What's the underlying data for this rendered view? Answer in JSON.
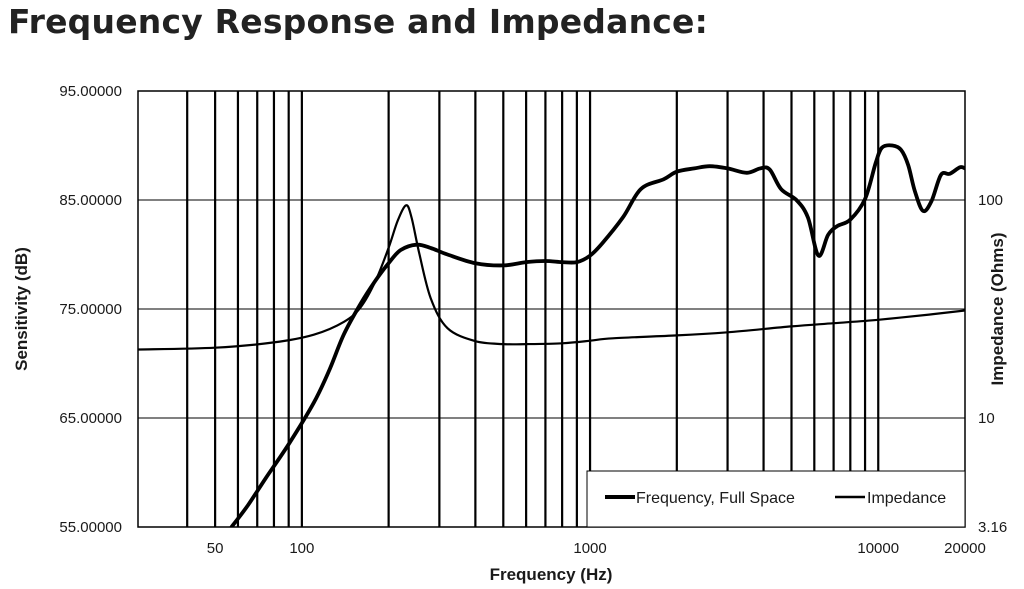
{
  "page": {
    "title": "Frequency Response and Impedance:"
  },
  "chart_data": {
    "type": "line",
    "xlabel": "Frequency (Hz)",
    "ylabel": "Sensitivity (dB)",
    "y2label": "Impedance (Ohms)",
    "x_scale": "log",
    "xlim": [
      27,
      20000
    ],
    "ylim": [
      55,
      95
    ],
    "y2_scale": "log",
    "y2lim": [
      3.16,
      316
    ],
    "x_ticks": [
      {
        "value": 50,
        "label": "50"
      },
      {
        "value": 100,
        "label": "100"
      },
      {
        "value": 1000,
        "label": "1000"
      },
      {
        "value": 10000,
        "label": "10000"
      },
      {
        "value": 20000,
        "label": "20000"
      }
    ],
    "y_ticks": [
      {
        "value": 95,
        "label": "95.00000"
      },
      {
        "value": 85,
        "label": "85.00000"
      },
      {
        "value": 75,
        "label": "75.00000"
      },
      {
        "value": 65,
        "label": "65.00000"
      },
      {
        "value": 55,
        "label": "55.00000"
      }
    ],
    "y2_ticks": [
      {
        "value": 100,
        "label": "100"
      },
      {
        "value": 10,
        "label": "10"
      },
      {
        "value": 3.16,
        "label": "3.16"
      }
    ],
    "x_gridlines": [
      40,
      50,
      60,
      70,
      80,
      90,
      100,
      200,
      300,
      400,
      500,
      600,
      700,
      800,
      900,
      1000,
      2000,
      3000,
      4000,
      5000,
      6000,
      7000,
      8000,
      9000,
      10000,
      20000
    ],
    "y_gridlines": [
      95,
      85,
      75,
      65,
      55
    ],
    "grid": true,
    "legend_position": "bottom-right",
    "series": [
      {
        "name": "Frequency, Full Space",
        "axis": "left",
        "color": "#000000",
        "x": [
          57,
          65,
          75,
          90,
          110,
          125,
          140,
          160,
          180,
          200,
          220,
          250,
          280,
          320,
          400,
          500,
          600,
          700,
          800,
          900,
          1000,
          1100,
          1300,
          1500,
          1800,
          2000,
          2300,
          2600,
          3000,
          3500,
          3900,
          4200,
          4600,
          5200,
          5700,
          6200,
          6700,
          7200,
          8000,
          9000,
          9800,
          10300,
          11200,
          12000,
          12700,
          13400,
          14300,
          15300,
          16500,
          17700,
          19200,
          20000
        ],
        "y": [
          55.0,
          57.0,
          59.5,
          62.6,
          66.4,
          69.5,
          72.7,
          75.5,
          77.6,
          79.2,
          80.4,
          80.9,
          80.6,
          80.0,
          79.2,
          79.0,
          79.3,
          79.4,
          79.3,
          79.3,
          79.9,
          81.0,
          83.4,
          86.0,
          86.9,
          87.6,
          87.9,
          88.1,
          87.9,
          87.5,
          87.9,
          87.8,
          86.0,
          85.0,
          83.4,
          79.9,
          81.8,
          82.6,
          83.2,
          85.1,
          88.4,
          89.8,
          90.0,
          89.6,
          88.2,
          85.8,
          84.0,
          84.9,
          87.3,
          87.4,
          88.0,
          87.9
        ]
      },
      {
        "name": "Impedance",
        "axis": "right",
        "color": "#000000",
        "x": [
          27,
          50,
          80,
          110,
          140,
          160,
          180,
          200,
          215,
          230,
          240,
          255,
          280,
          320,
          400,
          500,
          600,
          800,
          1000,
          1200,
          2000,
          3000,
          5000,
          7000,
          10000,
          15000,
          20000
        ],
        "y": [
          20.6,
          21.0,
          22.2,
          24.1,
          27.6,
          32.2,
          42.4,
          60.3,
          80.3,
          94.5,
          83.5,
          57.6,
          35.4,
          25.8,
          22.5,
          21.8,
          21.8,
          22.0,
          22.6,
          23.2,
          23.9,
          24.7,
          26.3,
          27.2,
          28.2,
          29.8,
          31.1
        ]
      }
    ]
  }
}
